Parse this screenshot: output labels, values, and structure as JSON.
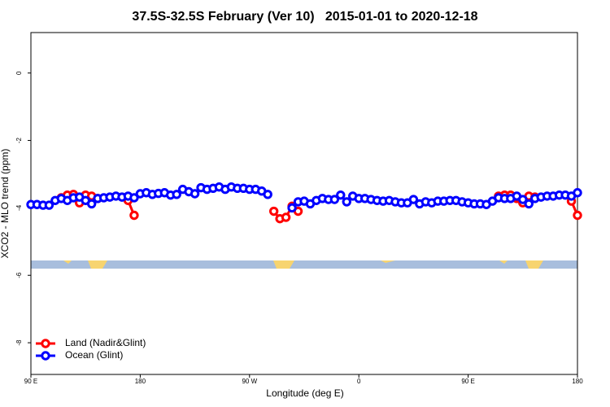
{
  "chart_data": {
    "type": "line",
    "title": "37.5S-32.5S February (Ver 10)   2015-01-01 to 2020-12-18",
    "x_label": "Longitude (deg E)",
    "y_label": "XCO2 - MLO trend (ppm)",
    "xlim": [
      90,
      540
    ],
    "ylim": [
      -8.94,
      1.2
    ],
    "xticks": [
      {
        "value": 90,
        "label": "90 E"
      },
      {
        "value": 180,
        "label": "180"
      },
      {
        "value": 270,
        "label": "90 W"
      },
      {
        "value": 360,
        "label": "0"
      },
      {
        "value": 450,
        "label": "90 E"
      },
      {
        "value": 540,
        "label": "180"
      }
    ],
    "yticks": [
      0,
      -2,
      -4,
      -6,
      -8
    ],
    "legend": "bottomleft",
    "series": [
      {
        "name": "Land (Nadir&Glint)",
        "color": "#ff0000",
        "x": [
          115,
          120,
          125,
          130,
          135,
          140,
          145,
          150,
          170,
          175,
          180,
          290,
          295,
          300,
          305,
          310,
          315,
          475,
          480,
          485,
          490,
          495,
          500,
          505,
          510,
          535,
          540
        ],
        "values": [
          -3.7,
          -3.62,
          -3.6,
          -3.85,
          -3.62,
          -3.65,
          -3.72,
          null,
          -3.78,
          -4.22,
          null,
          -4.1,
          -4.32,
          -4.28,
          -3.95,
          -4.1,
          null,
          -3.65,
          -3.62,
          -3.62,
          -3.72,
          -3.85,
          -3.65,
          -3.68,
          null,
          -3.8,
          -4.22
        ]
      },
      {
        "name": "Ocean (Glint)",
        "color": "#0000ff",
        "x": [
          90,
          95,
          100,
          105,
          110,
          115,
          120,
          125,
          130,
          135,
          140,
          145,
          150,
          155,
          160,
          165,
          170,
          175,
          180,
          185,
          190,
          195,
          200,
          205,
          210,
          215,
          220,
          225,
          230,
          235,
          240,
          245,
          250,
          255,
          260,
          265,
          270,
          275,
          280,
          285,
          290,
          295,
          300,
          305,
          310,
          315,
          320,
          325,
          330,
          335,
          340,
          345,
          350,
          355,
          360,
          365,
          370,
          375,
          380,
          385,
          390,
          395,
          400,
          405,
          410,
          415,
          420,
          425,
          430,
          435,
          440,
          445,
          450,
          455,
          460,
          465,
          470,
          475,
          480,
          485,
          490,
          495,
          500,
          505,
          510,
          515,
          520,
          525,
          530,
          535,
          540
        ],
        "values": [
          -3.9,
          -3.9,
          -3.92,
          -3.92,
          -3.78,
          -3.72,
          -3.78,
          -3.7,
          -3.68,
          -3.78,
          -3.88,
          -3.72,
          -3.7,
          -3.68,
          -3.65,
          -3.68,
          -3.65,
          -3.7,
          -3.58,
          -3.55,
          -3.6,
          -3.57,
          -3.55,
          -3.62,
          -3.6,
          -3.45,
          -3.52,
          -3.58,
          -3.4,
          -3.45,
          -3.42,
          -3.38,
          -3.45,
          -3.38,
          -3.42,
          -3.42,
          -3.45,
          -3.45,
          -3.5,
          -3.6,
          null,
          null,
          null,
          -4.0,
          -3.82,
          -3.8,
          -3.88,
          -3.78,
          -3.72,
          -3.75,
          -3.75,
          -3.62,
          -3.82,
          -3.65,
          -3.72,
          -3.72,
          -3.75,
          -3.78,
          -3.8,
          -3.78,
          -3.82,
          -3.85,
          -3.85,
          -3.75,
          -3.88,
          -3.82,
          -3.85,
          -3.8,
          -3.8,
          -3.78,
          -3.78,
          -3.82,
          -3.85,
          -3.88,
          -3.88,
          -3.9,
          -3.8,
          -3.7,
          -3.72,
          -3.72,
          -3.65,
          -3.75,
          -3.88,
          -3.72,
          -3.68,
          -3.65,
          -3.65,
          -3.62,
          -3.62,
          -3.65,
          -3.55
        ]
      }
    ]
  }
}
